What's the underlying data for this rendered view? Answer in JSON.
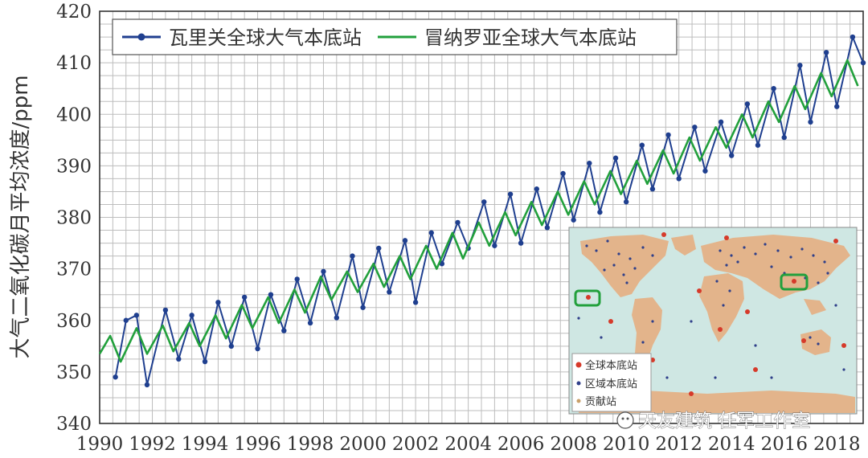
{
  "chart_data": {
    "type": "line",
    "title": "",
    "xlabel": "",
    "ylabel": "大气二氧化碳月平均浓度/ppm",
    "xlim": [
      1990,
      2019
    ],
    "ylim": [
      340,
      420
    ],
    "x_ticks": [
      "1990",
      "1992",
      "1994",
      "1996",
      "1998",
      "2000",
      "2002",
      "2004",
      "2006",
      "2008",
      "2010",
      "2012",
      "2014",
      "2016",
      "2018"
    ],
    "y_ticks": [
      "340",
      "350",
      "360",
      "370",
      "380",
      "390",
      "400",
      "410",
      "420"
    ],
    "grid": true,
    "legend_position": "top-left",
    "series_style": [
      {
        "color": "#1f3f8f",
        "marker": "dot"
      },
      {
        "color": "#22a03c",
        "marker": "none"
      }
    ],
    "series": [
      {
        "name": "瓦里关全球大气本底站",
        "x": [
          1990.6,
          1991.0,
          1991.4,
          1991.8,
          1992.5,
          1993.0,
          1993.5,
          1994.0,
          1994.5,
          1995.0,
          1995.5,
          1996.0,
          1996.5,
          1997.0,
          1997.5,
          1998.0,
          1998.5,
          1999.0,
          1999.6,
          2000.0,
          2000.6,
          2001.0,
          2001.6,
          2002.0,
          2002.6,
          2003.0,
          2003.6,
          2004.0,
          2004.6,
          2005.0,
          2005.6,
          2006.0,
          2006.6,
          2007.0,
          2007.6,
          2008.0,
          2008.6,
          2009.0,
          2009.6,
          2010.0,
          2010.6,
          2011.0,
          2011.6,
          2012.0,
          2012.6,
          2013.0,
          2013.6,
          2014.0,
          2014.6,
          2015.0,
          2015.6,
          2016.0,
          2016.6,
          2017.0,
          2017.6,
          2018.0,
          2018.6,
          2019.0
        ],
        "y": [
          349.0,
          360.0,
          361.0,
          347.5,
          362.0,
          352.5,
          361.0,
          352.0,
          363.5,
          355.0,
          364.5,
          354.5,
          365.0,
          358.0,
          368.0,
          359.5,
          369.5,
          360.5,
          372.5,
          362.5,
          374.0,
          365.5,
          375.5,
          363.5,
          377.0,
          371.0,
          379.0,
          374.0,
          383.0,
          374.5,
          384.5,
          375.0,
          385.5,
          378.0,
          388.5,
          379.5,
          390.5,
          381.0,
          391.5,
          383.0,
          394.0,
          385.5,
          396.0,
          387.5,
          397.5,
          389.0,
          398.5,
          392.0,
          402.0,
          394.0,
          405.0,
          395.5,
          409.5,
          398.5,
          412.0,
          401.5,
          415.0,
          410.0
        ]
      },
      {
        "name": "冒纳罗亚全球大气本底站",
        "x": [
          1990.0,
          1990.4,
          1990.8,
          1991.4,
          1991.8,
          1992.4,
          1992.8,
          1993.4,
          1993.8,
          1994.4,
          1994.8,
          1995.4,
          1995.8,
          1996.4,
          1996.8,
          1997.4,
          1997.8,
          1998.4,
          1998.8,
          1999.4,
          1999.8,
          2000.4,
          2000.8,
          2001.4,
          2001.8,
          2002.4,
          2002.8,
          2003.4,
          2003.8,
          2004.4,
          2004.8,
          2005.4,
          2005.8,
          2006.4,
          2006.8,
          2007.4,
          2007.8,
          2008.4,
          2008.8,
          2009.4,
          2009.8,
          2010.4,
          2010.8,
          2011.4,
          2011.8,
          2012.4,
          2012.8,
          2013.4,
          2013.8,
          2014.4,
          2014.8,
          2015.4,
          2015.8,
          2016.4,
          2016.8,
          2017.4,
          2017.8,
          2018.4,
          2018.8
        ],
        "y": [
          353.5,
          357.0,
          352.0,
          358.5,
          353.5,
          359.0,
          354.0,
          359.5,
          355.0,
          361.0,
          356.5,
          363.0,
          358.5,
          364.5,
          359.5,
          366.0,
          361.5,
          368.5,
          364.0,
          369.5,
          365.5,
          371.0,
          366.5,
          372.5,
          368.0,
          374.5,
          370.0,
          377.0,
          372.0,
          379.0,
          374.5,
          381.0,
          376.5,
          383.0,
          378.5,
          385.0,
          380.5,
          387.0,
          382.5,
          389.0,
          384.5,
          391.0,
          386.5,
          393.0,
          388.5,
          395.5,
          391.0,
          397.5,
          393.5,
          400.0,
          395.5,
          402.5,
          398.5,
          405.5,
          401.0,
          408.0,
          403.5,
          410.5,
          405.5
        ]
      }
    ]
  },
  "inset_map": {
    "legend": [
      "全球本底站",
      "区域本底站",
      "贡献站"
    ],
    "colors": {
      "ocean": "#cfe7e3",
      "land": "#e3b48b",
      "global_station": "#d63a2a",
      "regional_station": "#2f3f8a",
      "contrib_station": "#c9a06a",
      "highlight": "#22a03c"
    }
  },
  "watermark": {
    "text": "天友建筑 任军工作室"
  }
}
